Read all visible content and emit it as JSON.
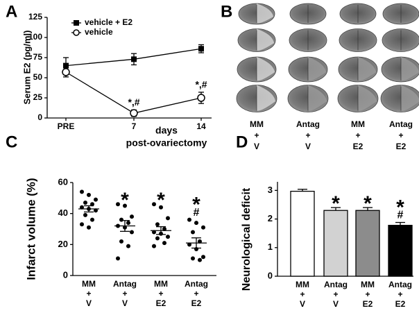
{
  "chart_data": [
    {
      "type": "line",
      "panel_label": "A",
      "ylabel": "Serum E2 (pg/ml)",
      "xlabel": [
        "days",
        "post-ovariectomy"
      ],
      "categories": [
        "PRE",
        "7",
        "14"
      ],
      "ylim": [
        0,
        125
      ],
      "yticks": [
        0,
        25,
        50,
        75,
        100,
        125
      ],
      "series": [
        {
          "name": "vehicle + E2",
          "color": "#000000",
          "marker": "square",
          "values": [
            65,
            73,
            86
          ],
          "errors": [
            10,
            7,
            5
          ]
        },
        {
          "name": "vehicle",
          "color": "#000000",
          "marker": "circle-open",
          "values": [
            57,
            6,
            25
          ],
          "errors": [
            6,
            4,
            7
          ],
          "annotations": [
            null,
            "*,#",
            "*,#"
          ]
        }
      ]
    },
    {
      "type": "dot",
      "panel_label": "C",
      "ylabel": "Infarct volume (%)",
      "categories": [
        [
          "MM",
          "+",
          "V"
        ],
        [
          "Antag",
          "+",
          "V"
        ],
        [
          "MM",
          "+",
          "E2"
        ],
        [
          "Antag",
          "+",
          "E2"
        ]
      ],
      "ylim": [
        0,
        60
      ],
      "yticks": [
        0,
        20,
        40,
        60
      ],
      "color": "#000000",
      "points": [
        [
          54,
          52,
          49,
          47,
          46,
          44,
          43,
          42,
          39,
          36,
          33,
          31
        ],
        [
          46,
          45,
          38,
          36,
          34,
          32,
          31,
          28,
          22,
          19,
          11
        ],
        [
          46,
          44,
          37,
          33,
          30,
          28,
          27,
          25,
          24,
          21,
          19
        ],
        [
          36,
          34,
          31,
          28,
          22,
          20,
          17,
          12,
          11,
          10
        ]
      ],
      "means": [
        43,
        32,
        29,
        21
      ],
      "errors": [
        2,
        3.5,
        2.5,
        3.3
      ],
      "annotations": [
        null,
        [
          "*"
        ],
        [
          "*"
        ],
        [
          "*",
          "#"
        ]
      ]
    },
    {
      "type": "bar",
      "panel_label": "D",
      "ylabel": "Neurological deficit",
      "categories": [
        [
          "MM",
          "+",
          "V"
        ],
        [
          "Antag",
          "+",
          "V"
        ],
        [
          "MM",
          "+",
          "E2"
        ],
        [
          "Antag",
          "+",
          "E2"
        ]
      ],
      "ylim": [
        0,
        3.3
      ],
      "yticks": [
        0,
        1,
        2,
        3
      ],
      "values": [
        2.97,
        2.3,
        2.3,
        1.78
      ],
      "errors": [
        0.07,
        0.1,
        0.1,
        0.1
      ],
      "colors": [
        "#ffffff",
        "#d2d2d2",
        "#8c8c8c",
        "#000000"
      ],
      "annotations": [
        null,
        [
          "*"
        ],
        [
          "*"
        ],
        [
          "*",
          "#"
        ]
      ]
    }
  ],
  "image_panel": {
    "panel_label": "B",
    "columns": [
      [
        "MM",
        "+",
        "V"
      ],
      [
        "Antag",
        "+",
        "V"
      ],
      [
        "MM",
        "+",
        "E2"
      ],
      [
        "Antag",
        "+",
        "E2"
      ]
    ]
  }
}
